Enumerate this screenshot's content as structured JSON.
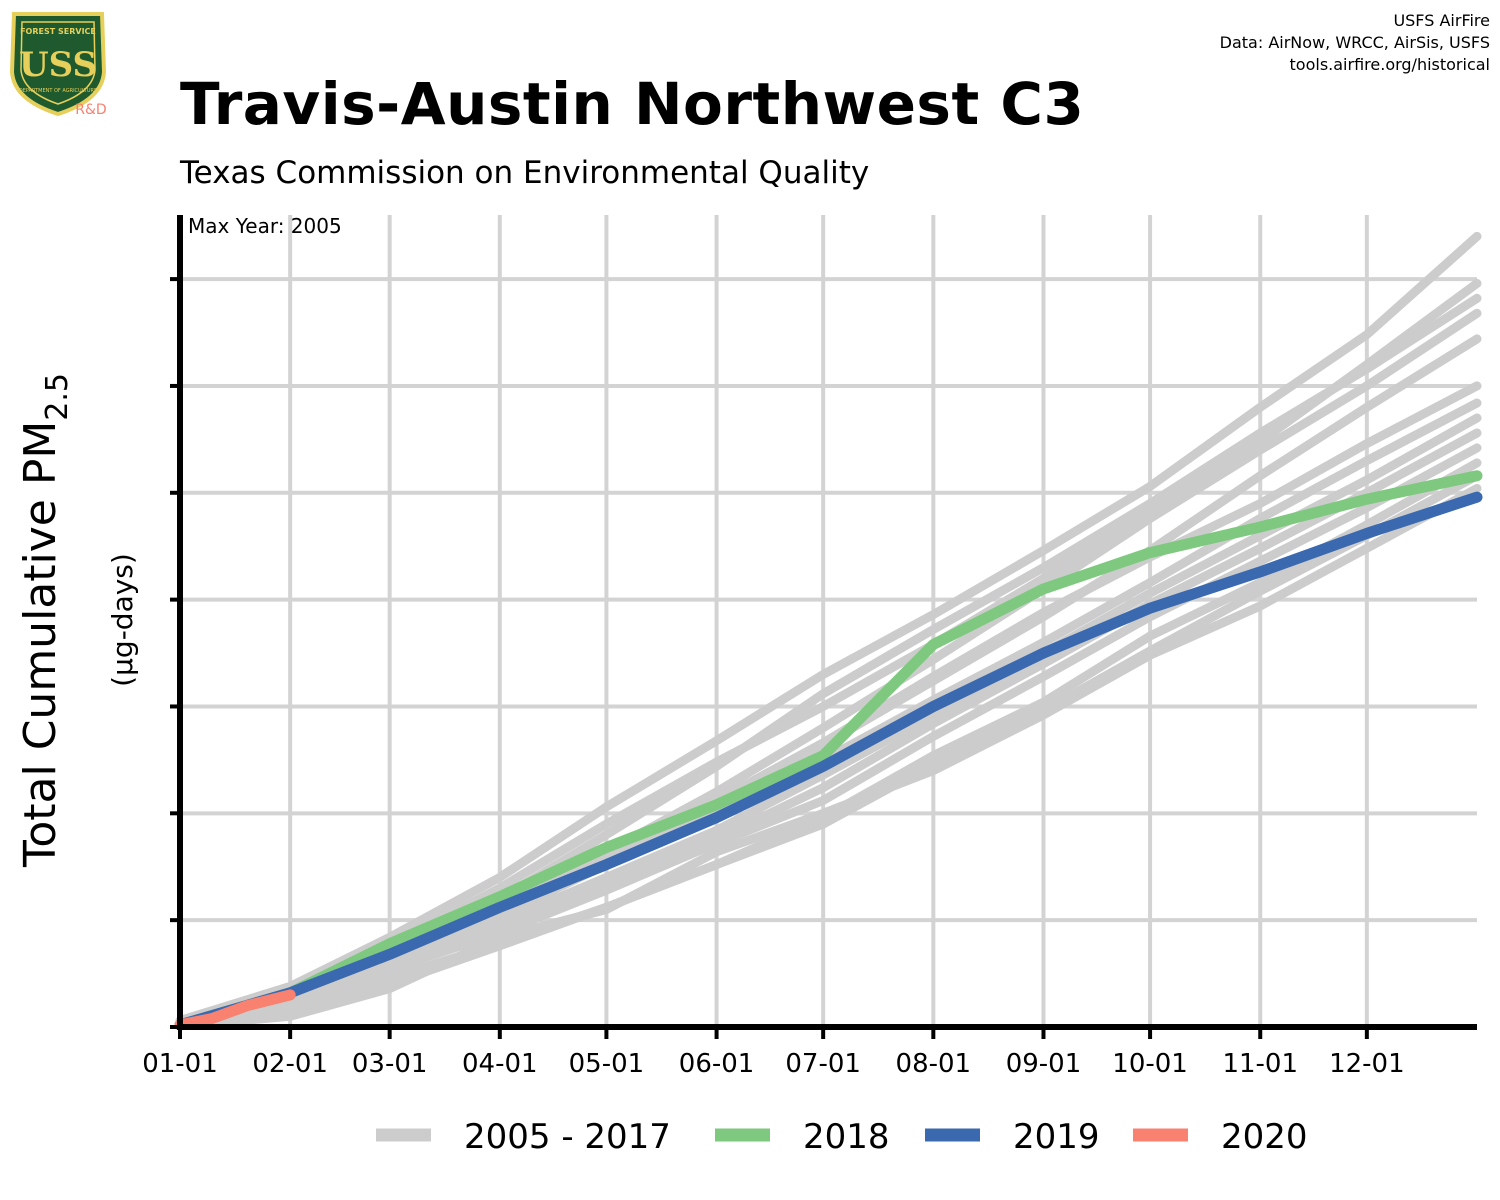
{
  "header": {
    "title": "Travis-Austin Northwest C3",
    "subtitle": "Texas Commission on Environmental Quality",
    "credits": [
      "USFS AirFire",
      "Data: AirNow, WRCC, AirSis, USFS",
      "tools.airfire.org/historical"
    ]
  },
  "logo": {
    "top_text": "FOREST SERVICE",
    "letters": "USS",
    "bottom_text": "DEPARTMENT OF AGRICULTURE",
    "tag": "R&D"
  },
  "annotation": "Max Year: 2005",
  "colors": {
    "history": "#cccccc",
    "y2018": "#7ec97f",
    "y2019": "#3a69b0",
    "y2020": "#f88170",
    "grid": "#d3d3d3",
    "axis": "#000000"
  },
  "chart_data": {
    "type": "line",
    "title": "Travis-Austin Northwest C3",
    "subtitle": "Texas Commission on Environmental Quality",
    "ylabel_main": "Total Cumulative PM",
    "ylabel_sub": "2.5",
    "ylabel_units": "(µg-days)",
    "xlabel": "",
    "x_tick_labels": [
      "01-01",
      "02-01",
      "03-01",
      "04-01",
      "05-01",
      "06-01",
      "07-01",
      "08-01",
      "09-01",
      "10-01",
      "11-01",
      "12-01"
    ],
    "x_tick_days": [
      1,
      32,
      60,
      91,
      121,
      152,
      182,
      213,
      244,
      274,
      305,
      335
    ],
    "xlim": [
      1,
      366
    ],
    "ylim": [
      0,
      3800
    ],
    "y_gridlines": [
      500,
      1000,
      1500,
      2000,
      2500,
      3000,
      3500
    ],
    "grid": true,
    "legend_position": "bottom",
    "legend": [
      "2005 - 2017",
      "2018",
      "2019",
      "2020"
    ],
    "series": [
      {
        "group": "2005 - 2017",
        "days": [
          1,
          32,
          60,
          91,
          121,
          152,
          182,
          213,
          244,
          274,
          305,
          335,
          366
        ],
        "values": [
          30,
          190,
          420,
          700,
          1030,
          1340,
          1650,
          1930,
          2230,
          2530,
          2900,
          3240,
          3700
        ]
      },
      {
        "group": "2005 - 2017",
        "days": [
          1,
          32,
          60,
          91,
          121,
          152,
          182,
          213,
          244,
          274,
          305,
          335,
          366
        ],
        "values": [
          25,
          170,
          380,
          650,
          950,
          1240,
          1500,
          1790,
          2100,
          2420,
          2740,
          3100,
          3480
        ]
      },
      {
        "group": "2005 - 2017",
        "days": [
          1,
          32,
          60,
          91,
          121,
          152,
          182,
          213,
          244,
          274,
          305,
          335,
          366
        ],
        "values": [
          30,
          160,
          370,
          600,
          900,
          1220,
          1560,
          1860,
          2150,
          2450,
          2780,
          3080,
          3410
        ]
      },
      {
        "group": "2005 - 2017",
        "days": [
          1,
          32,
          60,
          91,
          121,
          152,
          182,
          213,
          244,
          274,
          305,
          335,
          366
        ],
        "values": [
          20,
          150,
          330,
          560,
          820,
          1100,
          1400,
          1720,
          2050,
          2380,
          2700,
          3000,
          3340
        ]
      },
      {
        "group": "2005 - 2017",
        "days": [
          1,
          32,
          60,
          91,
          121,
          152,
          182,
          213,
          244,
          274,
          305,
          335,
          366
        ],
        "values": [
          20,
          140,
          320,
          520,
          780,
          1040,
          1320,
          1620,
          1920,
          2230,
          2580,
          2900,
          3220
        ]
      },
      {
        "group": "2005 - 2017",
        "days": [
          1,
          32,
          60,
          91,
          121,
          152,
          182,
          213,
          244,
          274,
          305,
          335,
          366
        ],
        "values": [
          15,
          150,
          350,
          580,
          820,
          1060,
          1330,
          1640,
          1940,
          2200,
          2450,
          2730,
          3000
        ]
      },
      {
        "group": "2005 - 2017",
        "days": [
          1,
          32,
          60,
          91,
          121,
          152,
          182,
          213,
          244,
          274,
          305,
          335,
          366
        ],
        "values": [
          20,
          140,
          320,
          520,
          760,
          1000,
          1250,
          1530,
          1800,
          2080,
          2380,
          2650,
          2920
        ]
      },
      {
        "group": "2005 - 2017",
        "days": [
          1,
          32,
          60,
          91,
          121,
          152,
          182,
          213,
          244,
          274,
          305,
          335,
          366
        ],
        "values": [
          15,
          130,
          300,
          490,
          700,
          920,
          1180,
          1460,
          1750,
          2030,
          2300,
          2560,
          2850
        ]
      },
      {
        "group": "2005 - 2017",
        "days": [
          1,
          32,
          60,
          91,
          121,
          152,
          182,
          213,
          244,
          274,
          305,
          335,
          366
        ],
        "values": [
          10,
          120,
          280,
          460,
          660,
          880,
          1120,
          1420,
          1700,
          1980,
          2240,
          2500,
          2780
        ]
      },
      {
        "group": "2005 - 2017",
        "days": [
          1,
          32,
          60,
          91,
          121,
          152,
          182,
          213,
          244,
          274,
          305,
          335,
          366
        ],
        "values": [
          10,
          110,
          270,
          440,
          640,
          860,
          1060,
          1360,
          1640,
          1920,
          2180,
          2430,
          2710
        ]
      },
      {
        "group": "2005 - 2017",
        "days": [
          1,
          32,
          60,
          91,
          121,
          152,
          182,
          213,
          244,
          274,
          305,
          335,
          366
        ],
        "values": [
          5,
          50,
          180,
          420,
          550,
          820,
          1000,
          1200,
          1460,
          1740,
          1970,
          2240,
          2520
        ]
      },
      {
        "group": "2005 - 2017",
        "days": [
          1,
          32,
          60,
          91,
          121,
          152,
          182,
          213,
          244,
          274,
          305,
          335,
          366
        ],
        "values": [
          5,
          90,
          230,
          390,
          560,
          760,
          980,
          1270,
          1520,
          1830,
          2080,
          2350,
          2640
        ]
      },
      {
        "group": "2005 - 2017",
        "days": [
          1,
          32,
          60,
          91,
          121,
          152,
          182,
          213,
          244,
          274,
          305,
          335,
          366
        ],
        "values": [
          10,
          60,
          200,
          380,
          560,
          760,
          950,
          1230,
          1480,
          1760,
          2040,
          2300,
          2580
        ]
      },
      {
        "group": "2018",
        "name": "2018",
        "days": [
          1,
          32,
          60,
          91,
          121,
          152,
          182,
          213,
          244,
          274,
          305,
          335,
          366
        ],
        "values": [
          10,
          160,
          390,
          610,
          840,
          1040,
          1270,
          1790,
          2050,
          2220,
          2340,
          2470,
          2580
        ]
      },
      {
        "group": "2019",
        "name": "2019",
        "days": [
          1,
          32,
          60,
          91,
          121,
          152,
          182,
          213,
          244,
          274,
          305,
          335,
          366
        ],
        "values": [
          10,
          160,
          340,
          560,
          760,
          980,
          1220,
          1500,
          1750,
          1960,
          2130,
          2310,
          2480
        ]
      },
      {
        "group": "2020",
        "name": "2020",
        "days": [
          1,
          10,
          20,
          32
        ],
        "values": [
          10,
          40,
          100,
          150
        ]
      }
    ]
  }
}
